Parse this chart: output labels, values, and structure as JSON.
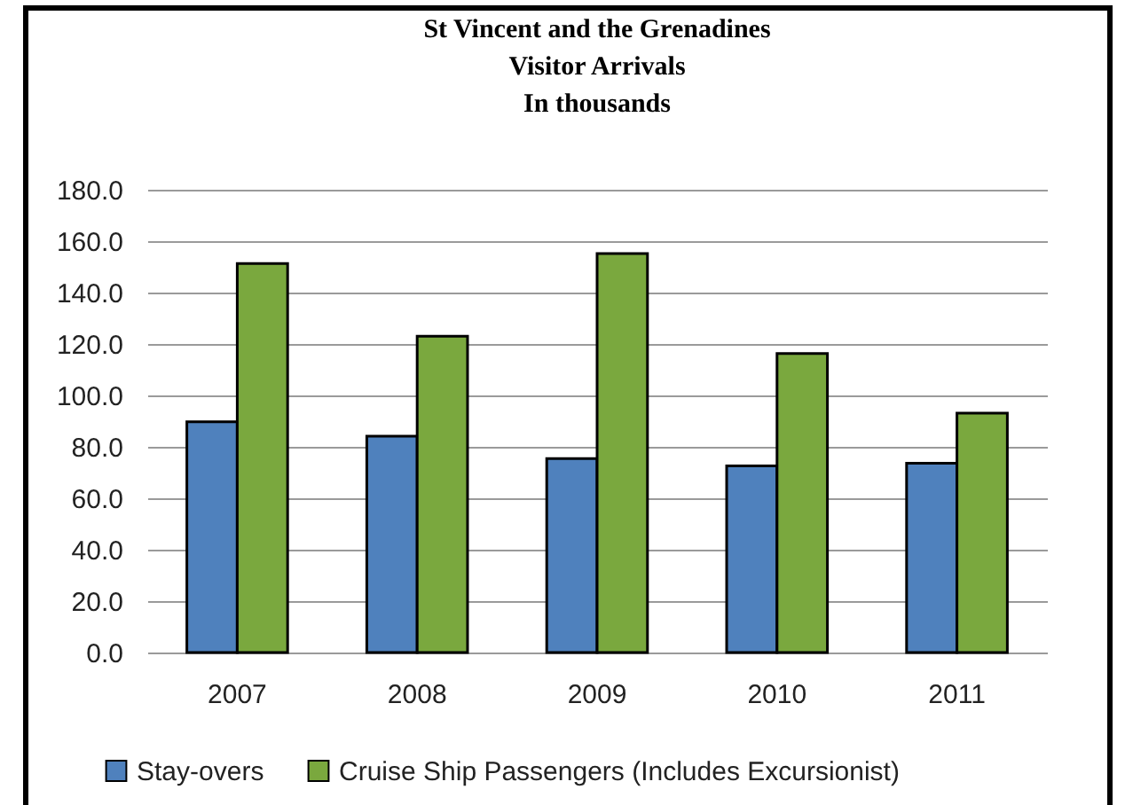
{
  "chart_data": {
    "type": "bar",
    "title": "St Vincent and the Grenadines\nVisitor Arrivals\nIn thousands",
    "categories": [
      "2007",
      "2008",
      "2009",
      "2010",
      "2011"
    ],
    "series": [
      {
        "name": "Stay-overs",
        "color": "#4f81bd",
        "values": [
          89.7,
          84.1,
          75.4,
          72.6,
          73.6
        ]
      },
      {
        "name": "Cruise Ship Passengers (Includes Excursionist)",
        "color": "#7aa83e",
        "values": [
          151.3,
          123.0,
          155.2,
          116.3,
          93.1
        ]
      }
    ],
    "ylim": [
      0,
      180
    ],
    "yticks": [
      {
        "value": 0,
        "label": "0.0"
      },
      {
        "value": 20,
        "label": "20.0"
      },
      {
        "value": 40,
        "label": "40.0"
      },
      {
        "value": 60,
        "label": "60.0"
      },
      {
        "value": 80,
        "label": "80.0"
      },
      {
        "value": 100,
        "label": "100.0"
      },
      {
        "value": 120,
        "label": "120.0"
      },
      {
        "value": 140,
        "label": "140.0"
      },
      {
        "value": 160,
        "label": "160.0"
      },
      {
        "value": 180,
        "label": "180.0"
      }
    ],
    "grid": "y",
    "legend": "bottom"
  }
}
